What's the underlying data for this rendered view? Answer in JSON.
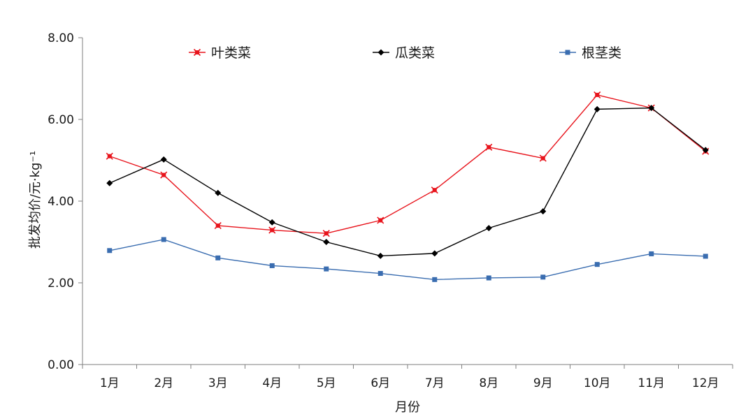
{
  "chart_data": {
    "type": "line",
    "title": "",
    "xlabel": "月份",
    "ylabel": "批发均价/元·kg⁻¹",
    "categories": [
      "1月",
      "2月",
      "3月",
      "4月",
      "5月",
      "6月",
      "7月",
      "8月",
      "9月",
      "10月",
      "11月",
      "12月"
    ],
    "y_tick_labels": [
      "0.00",
      "2.00",
      "4.00",
      "6.00",
      "8.00"
    ],
    "ylim": [
      0,
      8
    ],
    "grid": false,
    "legend_position": "top",
    "series": [
      {
        "name": "叶类菜",
        "color": "#e8141c",
        "marker": "asterisk",
        "values": [
          5.1,
          4.64,
          3.4,
          3.29,
          3.21,
          3.53,
          4.27,
          5.32,
          5.05,
          6.6,
          6.28,
          5.22
        ]
      },
      {
        "name": "瓜类菜",
        "color": "#000000",
        "marker": "diamond",
        "values": [
          4.44,
          5.02,
          4.2,
          3.48,
          3.0,
          2.66,
          2.72,
          3.34,
          3.75,
          6.25,
          6.28,
          5.25
        ]
      },
      {
        "name": "根茎类",
        "color": "#3a6db0",
        "marker": "square",
        "values": [
          2.79,
          3.06,
          2.61,
          2.42,
          2.34,
          2.23,
          2.08,
          2.12,
          2.14,
          2.45,
          2.71,
          2.65
        ]
      }
    ]
  }
}
